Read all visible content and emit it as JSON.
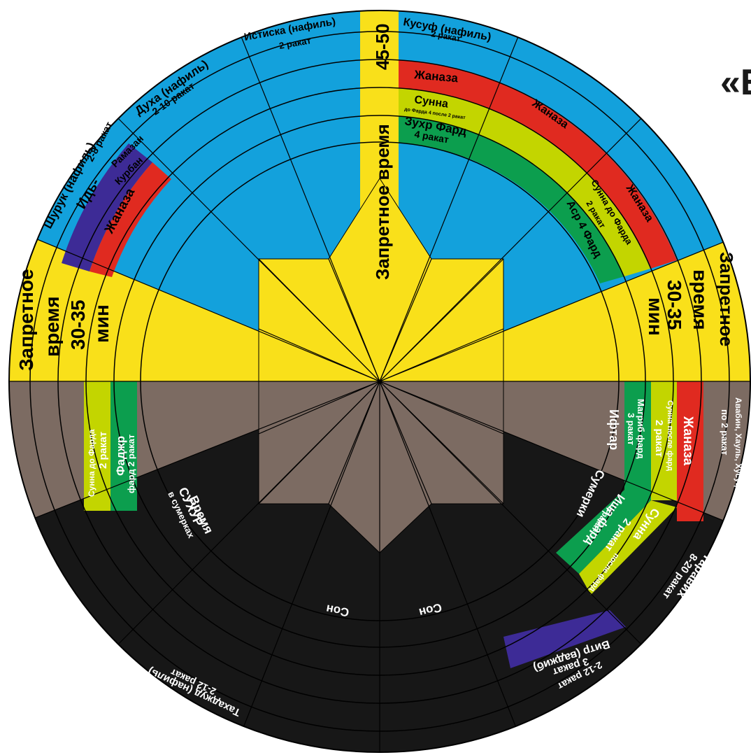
{
  "header": {
    "cut_title": "«E"
  },
  "colors": {
    "day_blue": "#13a1dc",
    "forbidden_yellow": "#f9e01a",
    "night_black": "#171717",
    "twilight_brown": "#7c6b62",
    "janaza_red": "#e02a20",
    "sunnah_lime": "#c3d500",
    "fard_green": "#0c9e4e",
    "special_purple": "#3d2b96",
    "line": "#000000"
  },
  "labels": {
    "forbidden_top": "Запретное время",
    "forbidden_top_min": "45-50",
    "kusuf_1": "Кусуф (нафиль)",
    "kusuf_2": "2 ракат",
    "istiska_1": "Истиска (нафиль)",
    "istiska_2": "2 ракат",
    "duha_1": "Духа (нафиль)",
    "duha_2": "2-10 ракат",
    "shuruk_1": "Шурук (нафиль)",
    "shuruk_2": "2-8 ракат",
    "id_1": "Идь-",
    "id_ramazan": "Рамазан",
    "id_kurban": "Курбан",
    "janaza_left": "Жаназа",
    "janaza_top": "Жаназа",
    "sunna_top": "Сунна",
    "sunna_top_sub": "до Фарда 4 после 2 ракат",
    "zuhr_1": "Зухр Фард",
    "zuhr_2": "4 ракат",
    "janaza_mid": "Жаназа",
    "asr_sunna_1": "Сунна до Фарда",
    "asr_sunna_2": "2 ракат",
    "asr_fard": "Аср 4 Фард",
    "janaza_right": "Жаназа",
    "left_forbidden_1": "Запретное",
    "left_forbidden_2": "время",
    "left_forbidden_3": "30-35",
    "left_forbidden_4": "мин",
    "right_forbidden_1": "Запретное",
    "right_forbidden_2": "время",
    "right_forbidden_3": "30-35",
    "right_forbidden_4": "мин",
    "fajr_sunna_1": "Сунна до Фарда",
    "fajr_sunna_2": "2 ракат",
    "fajr_1": "Фаджр",
    "fajr_2": "фард 2 ракат",
    "suhur_1": "Время",
    "suhur_2": "СУХУР",
    "suhur_3": "в сумерках",
    "iftar": "Ифтар",
    "maghrib_1": "Магриб фард",
    "maghrib_2": "3 ракат",
    "maghrib_sunna_1": "Сунна после фард",
    "maghrib_sunna_2": "2 ракат",
    "janaza_eve": "Жаназа",
    "awwabin_1": "Авабин, Хауль, Хусуф",
    "awwabin_2": "по 2 ракат",
    "sumerki": "Сумерки",
    "isha_1": "Иша фард",
    "isha_2": "4 ракат",
    "isha_sunna_1": "Сунна",
    "isha_sunna_2": "после фард",
    "isha_sunna_3": "2 ракат",
    "tarawih_1": "Таравих",
    "tarawih_2": "8-20 ракат",
    "son_left": "Сон",
    "son_right": "Сон",
    "witr_1": "Витр (ваджиб)",
    "witr_2": "3 ракат",
    "tahajjud_r1": "Тахаджуд (нафиль)",
    "tahajjud_r2": "2-12 ракат",
    "tahajjud_l1": "Тахаджуд (нафиль)",
    "tahajjud_l2": "2-12 ракат"
  }
}
